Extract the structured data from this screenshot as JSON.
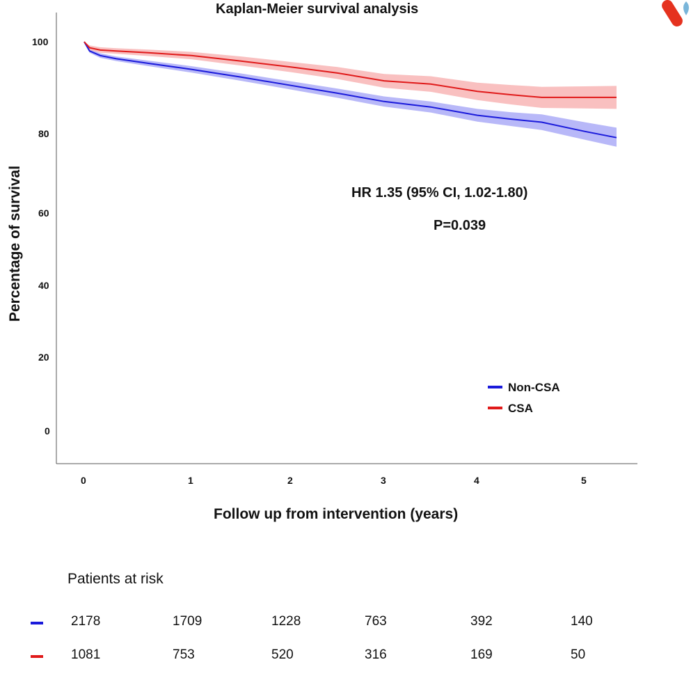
{
  "chart_data": {
    "type": "line",
    "title": "Kaplan-Meier survival analysis",
    "xlabel": "Follow up from intervention (years)",
    "ylabel": "Percentage of survival",
    "xlim": [
      0,
      5.3
    ],
    "ylim": [
      0,
      100
    ],
    "x_ticks": [
      "0",
      "1",
      "2",
      "3",
      "4",
      "5"
    ],
    "y_ticks": [
      "100",
      "80",
      "60",
      "40",
      "20",
      "0"
    ],
    "legend_position": "bottom-right",
    "annotation": {
      "hr": "HR 1.35 (95% CI, 1.02-1.80)",
      "p": "P=0.039"
    },
    "series": [
      {
        "name": "Non-CSA",
        "color": "#1a1adb",
        "band_color": "#9a9af5",
        "x": [
          0,
          0.05,
          0.15,
          0.3,
          0.6,
          1,
          1.5,
          2,
          2.5,
          3,
          3.5,
          4,
          4.3,
          4.6,
          5,
          5.3
        ],
        "y": [
          100,
          98,
          97,
          96.3,
          95.3,
          94,
          92.3,
          90.5,
          88.8,
          87,
          85.8,
          84,
          83.2,
          82.5,
          80.5,
          79
        ],
        "ci": [
          0,
          0.4,
          0.5,
          0.5,
          0.6,
          0.7,
          0.8,
          0.9,
          1.0,
          1.1,
          1.2,
          1.4,
          1.5,
          1.7,
          2.0,
          2.3
        ]
      },
      {
        "name": "CSA",
        "color": "#e01a1a",
        "band_color": "#f7a5a5",
        "x": [
          0,
          0.05,
          0.15,
          0.3,
          0.6,
          1,
          1.5,
          2,
          2.5,
          3,
          3.5,
          4,
          4.3,
          4.6,
          5,
          5.3
        ],
        "y": [
          100,
          98.7,
          98.2,
          98,
          97.6,
          97,
          95.8,
          94.5,
          93.2,
          91.5,
          90.8,
          89.2,
          88.5,
          87.9,
          87.9,
          87.9
        ],
        "ci": [
          0,
          0.5,
          0.6,
          0.6,
          0.7,
          0.8,
          1.0,
          1.1,
          1.3,
          1.5,
          1.7,
          1.9,
          2.1,
          2.3,
          2.4,
          2.5
        ]
      }
    ],
    "risk_table": {
      "title": "Patients at risk",
      "rows": [
        {
          "name": "Non-CSA",
          "color": "#1a1adb",
          "values": [
            "2178",
            "1709",
            "1228",
            "763",
            "392",
            "140"
          ]
        },
        {
          "name": "CSA",
          "color": "#e01a1a",
          "values": [
            "1081",
            "753",
            "520",
            "316",
            "169",
            "50"
          ]
        }
      ]
    }
  }
}
